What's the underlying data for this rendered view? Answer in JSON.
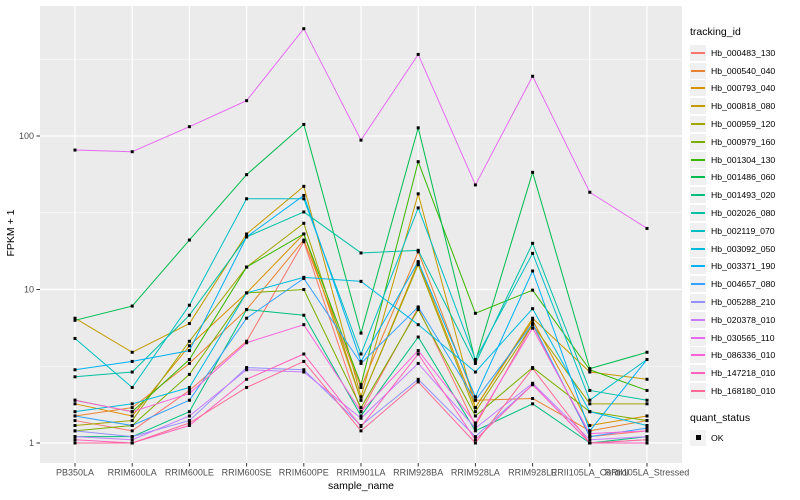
{
  "chart_data": {
    "type": "line",
    "title": "",
    "xlabel": "sample_name",
    "ylabel": "FPKM + 1",
    "legend_title": "tracking_id",
    "legend_position": "right",
    "y_scale": "log10",
    "y_ticks": [
      "1",
      "10",
      "100"
    ],
    "ylim": [
      0.75,
      700
    ],
    "grid": "white major and minor gridlines on grey panel",
    "quant_legend": {
      "title": "quant_status",
      "entries": [
        "OK"
      ]
    },
    "x_categories": [
      "PB350LA",
      "RRIM600LA",
      "RRIM600LE",
      "RRIM600SE",
      "RRIM600PE",
      "RRIM901LA",
      "RRIM928BA",
      "RRIM928LA",
      "RRIM928LE",
      "RRII105LA_Control",
      "RRII105LA_Stressed"
    ],
    "series": [
      {
        "name": "Hb_000483_130",
        "color": "#F8766D",
        "values": [
          1.4,
          1.2,
          2.2,
          4.6,
          20.5,
          1.6,
          7.6,
          1.3,
          5.9,
          1.1,
          1.2
        ]
      },
      {
        "name": "Hb_000540_040",
        "color": "#EA8331",
        "values": [
          1.5,
          1.7,
          3.3,
          7.4,
          21,
          2.3,
          17.6,
          1.9,
          1.95,
          1.2,
          1.4
        ]
      },
      {
        "name": "Hb_000793_040",
        "color": "#D89000",
        "values": [
          1.8,
          1.5,
          4.3,
          9.5,
          23,
          1.9,
          15,
          1.7,
          6.3,
          1.3,
          1.5
        ]
      },
      {
        "name": "Hb_000818_080",
        "color": "#C49A00",
        "values": [
          6.5,
          3.9,
          6.0,
          23,
          47,
          2.0,
          42,
          1.7,
          6.5,
          2.9,
          2.6
        ]
      },
      {
        "name": "Hb_000959_120",
        "color": "#A3A500",
        "values": [
          1.3,
          1.4,
          4.6,
          14,
          27,
          1.9,
          14.5,
          1.6,
          5.9,
          1.8,
          1.8
        ]
      },
      {
        "name": "Hb_000979_160",
        "color": "#7CAE00",
        "values": [
          1.2,
          1.3,
          2.8,
          9.5,
          10,
          1.7,
          7.4,
          1.5,
          3.1,
          1.6,
          1.4
        ]
      },
      {
        "name": "Hb_001304_130",
        "color": "#39B600",
        "values": [
          1.9,
          1.6,
          3.5,
          14,
          23,
          2.4,
          68,
          7.0,
          9.9,
          3.0,
          2.2
        ]
      },
      {
        "name": "Hb_001486_060",
        "color": "#00BB4E",
        "values": [
          6.3,
          7.8,
          21,
          56,
          119,
          5.2,
          113,
          3.4,
          58,
          3.05,
          3.9
        ]
      },
      {
        "name": "Hb_001493_020",
        "color": "#00BF7D",
        "values": [
          1.1,
          1.1,
          1.6,
          7.4,
          6.8,
          1.5,
          4.9,
          1.2,
          1.8,
          1.0,
          1.1
        ]
      },
      {
        "name": "Hb_002026_080",
        "color": "#00C1A3",
        "values": [
          2.7,
          2.9,
          6.8,
          22,
          32,
          17.3,
          18,
          3.3,
          20,
          2.2,
          1.9
        ]
      },
      {
        "name": "Hb_002119_070",
        "color": "#00BFC4",
        "values": [
          4.8,
          2.3,
          7.9,
          39,
          39,
          3.8,
          34,
          3.5,
          17.2,
          1.9,
          3.5
        ]
      },
      {
        "name": "Hb_003092_050",
        "color": "#00BADE",
        "values": [
          1.6,
          1.8,
          2.3,
          9.5,
          12,
          11.3,
          5.9,
          2.9,
          7.5,
          1.6,
          1.3
        ]
      },
      {
        "name": "Hb_003371_190",
        "color": "#00B0F6",
        "values": [
          3.0,
          3.4,
          4.0,
          22,
          41,
          3.4,
          15.2,
          2.0,
          13.2,
          1.2,
          3.5
        ]
      },
      {
        "name": "Hb_004657_080",
        "color": "#35A2FF",
        "values": [
          1.5,
          1.3,
          1.9,
          6.5,
          11.8,
          3.3,
          7.7,
          1.9,
          6.0,
          1.1,
          1.25
        ]
      },
      {
        "name": "Hb_005288_210",
        "color": "#9590FF",
        "values": [
          1.2,
          1.1,
          1.4,
          3.1,
          3.0,
          1.3,
          2.6,
          1.1,
          2.4,
          1.0,
          1.05
        ]
      },
      {
        "name": "Hb_020378_010",
        "color": "#C77CFF",
        "values": [
          1.1,
          1.05,
          1.5,
          3.0,
          2.9,
          1.45,
          3.3,
          1.25,
          2.45,
          1.05,
          1.1
        ]
      },
      {
        "name": "Hb_030565_110",
        "color": "#E76BF3",
        "values": [
          81,
          79,
          115,
          170,
          500,
          94,
          340,
          48,
          245,
          43,
          25
        ]
      },
      {
        "name": "Hb_086336_010",
        "color": "#FA62DB",
        "values": [
          1.9,
          1.6,
          2.1,
          4.5,
          5.9,
          1.6,
          4.0,
          1.35,
          5.6,
          1.15,
          1.2
        ]
      },
      {
        "name": "Hb_147218_010",
        "color": "#FF62BC",
        "values": [
          1.05,
          1.0,
          1.3,
          2.6,
          3.8,
          1.28,
          3.8,
          1.05,
          2.4,
          1.0,
          1.0
        ]
      },
      {
        "name": "Hb_168180_010",
        "color": "#FF6A98",
        "values": [
          1.0,
          1.0,
          1.35,
          2.3,
          3.4,
          1.2,
          2.5,
          1.0,
          3.06,
          1.0,
          1.05
        ]
      }
    ],
    "marker": {
      "shape": "filled-square",
      "color": "#000000"
    }
  },
  "colors": {
    "panel_bg": "#EBEBEB",
    "grid": "#FFFFFF",
    "tick_text": "#4D4D4D",
    "tick_mark": "#333333",
    "marker": "#000000",
    "legend_key_bg": "#F0F0F0"
  }
}
